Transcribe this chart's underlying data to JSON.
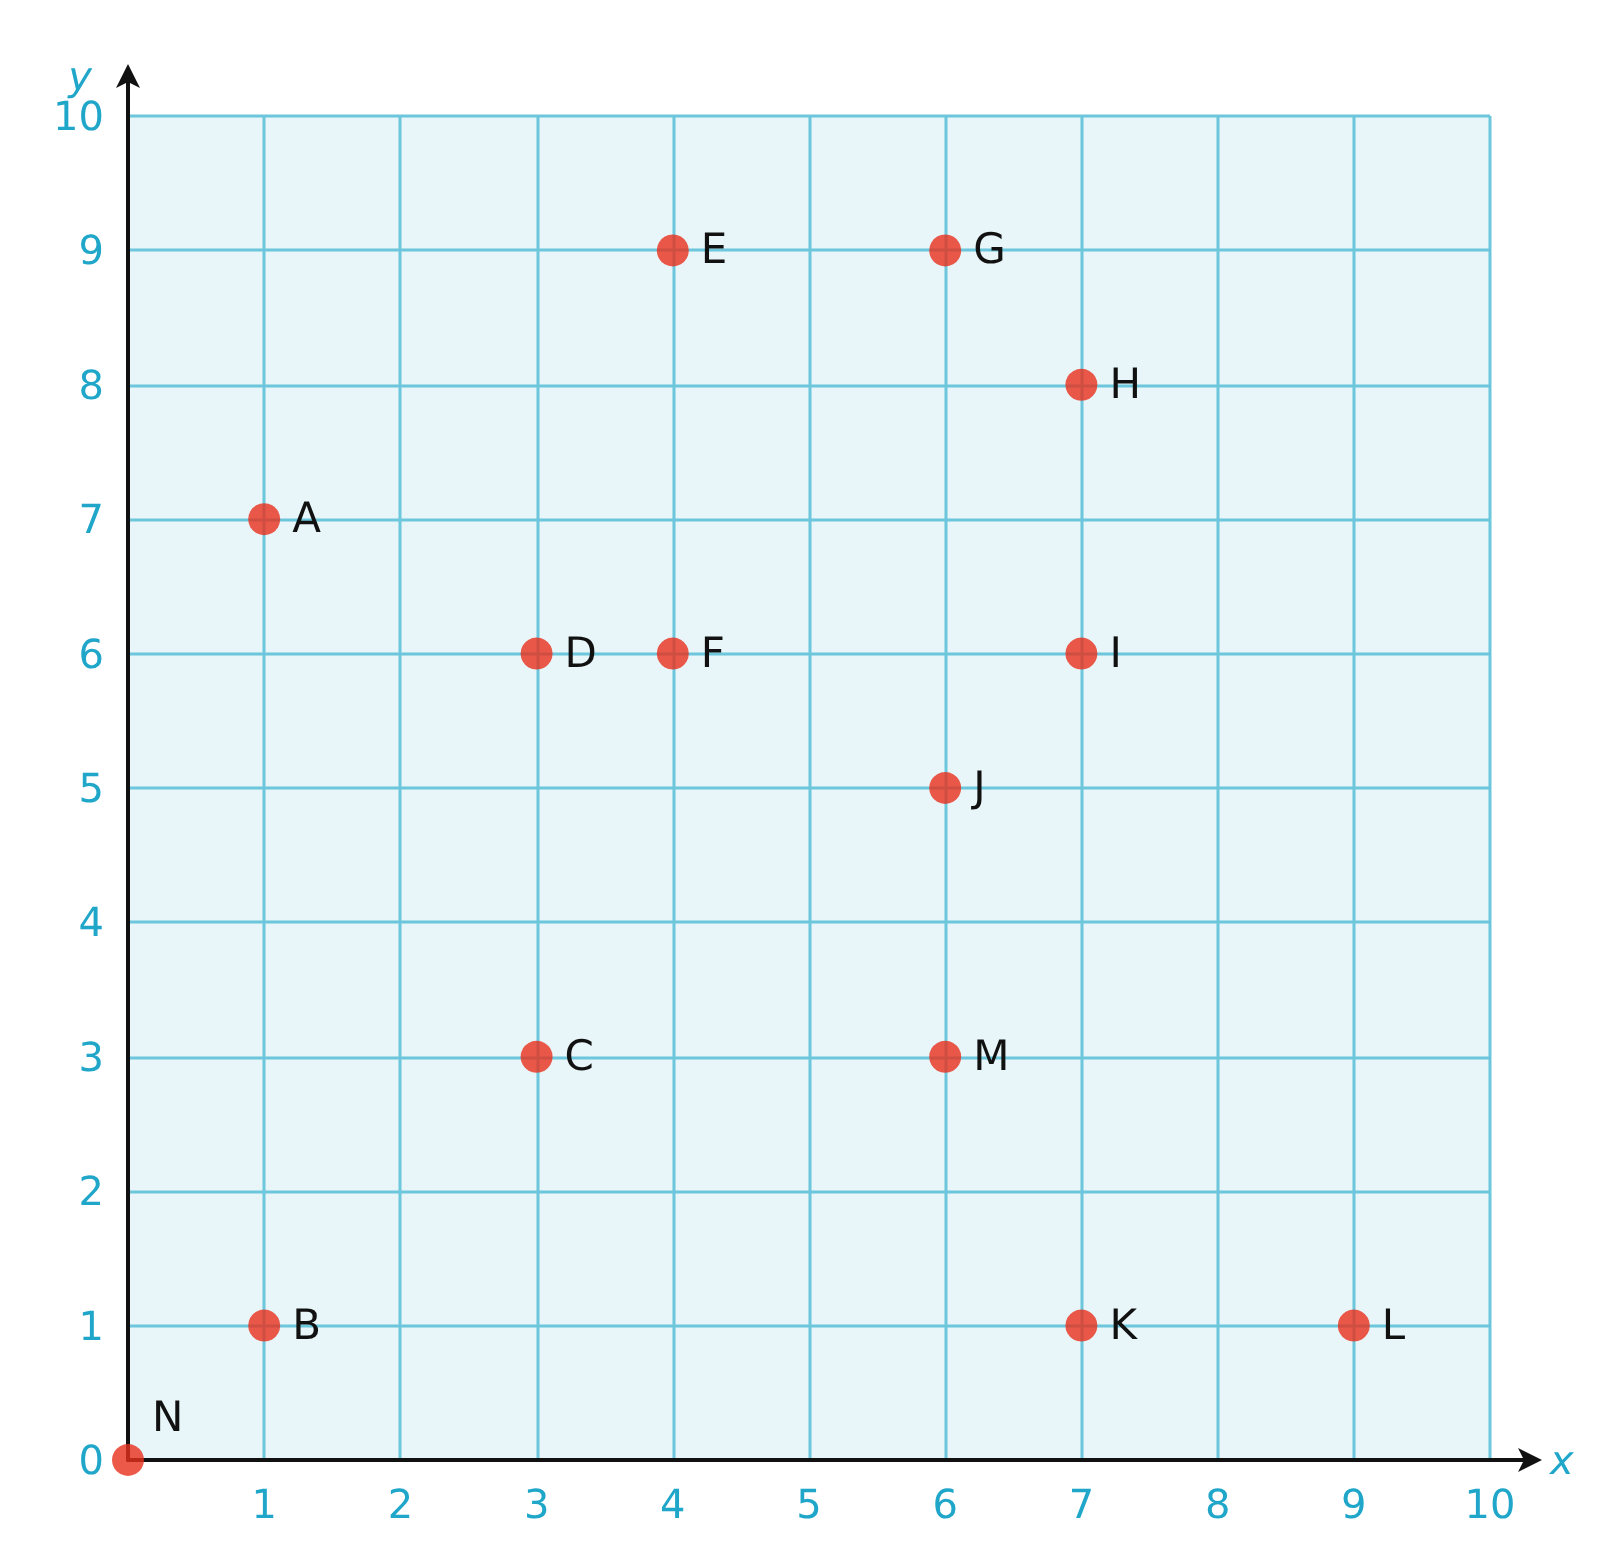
{
  "chart_data": {
    "type": "scatter",
    "xlabel": "x",
    "ylabel": "y",
    "x": [
      1,
      1,
      3,
      3,
      4,
      4,
      6,
      7,
      7,
      6,
      7,
      9,
      6,
      0
    ],
    "values": [
      7,
      1,
      3,
      6,
      9,
      6,
      9,
      8,
      6,
      5,
      1,
      1,
      3,
      0
    ],
    "color": "#e8301c",
    "marker": "circle",
    "xlim": [
      0,
      10
    ],
    "ylim": [
      0,
      10
    ],
    "xticks": [
      {
        "value": 0,
        "label": null
      },
      1,
      2,
      3,
      4,
      5,
      6,
      7,
      8,
      9,
      10
    ],
    "yticks": [
      0,
      1,
      2,
      3,
      4,
      5,
      6,
      7,
      8,
      9,
      10
    ],
    "grid": true,
    "annotations": [
      {
        "text": "A",
        "x": 1,
        "y": 7
      },
      {
        "text": "B",
        "x": 1,
        "y": 1
      },
      {
        "text": "C",
        "x": 3,
        "y": 3
      },
      {
        "text": "D",
        "x": 3,
        "y": 6
      },
      {
        "text": "E",
        "x": 4,
        "y": 9
      },
      {
        "text": "F",
        "x": 4,
        "y": 6
      },
      {
        "text": "G",
        "x": 6,
        "y": 9
      },
      {
        "text": "H",
        "x": 7,
        "y": 8
      },
      {
        "text": "I",
        "x": 7,
        "y": 6
      },
      {
        "text": "J",
        "x": 6,
        "y": 5
      },
      {
        "text": "K",
        "x": 7,
        "y": 1
      },
      {
        "text": "L",
        "x": 9,
        "y": 1
      },
      {
        "text": "M",
        "x": 6,
        "y": 3
      },
      {
        "text": "N",
        "x": 0,
        "y": 0
      }
    ]
  }
}
